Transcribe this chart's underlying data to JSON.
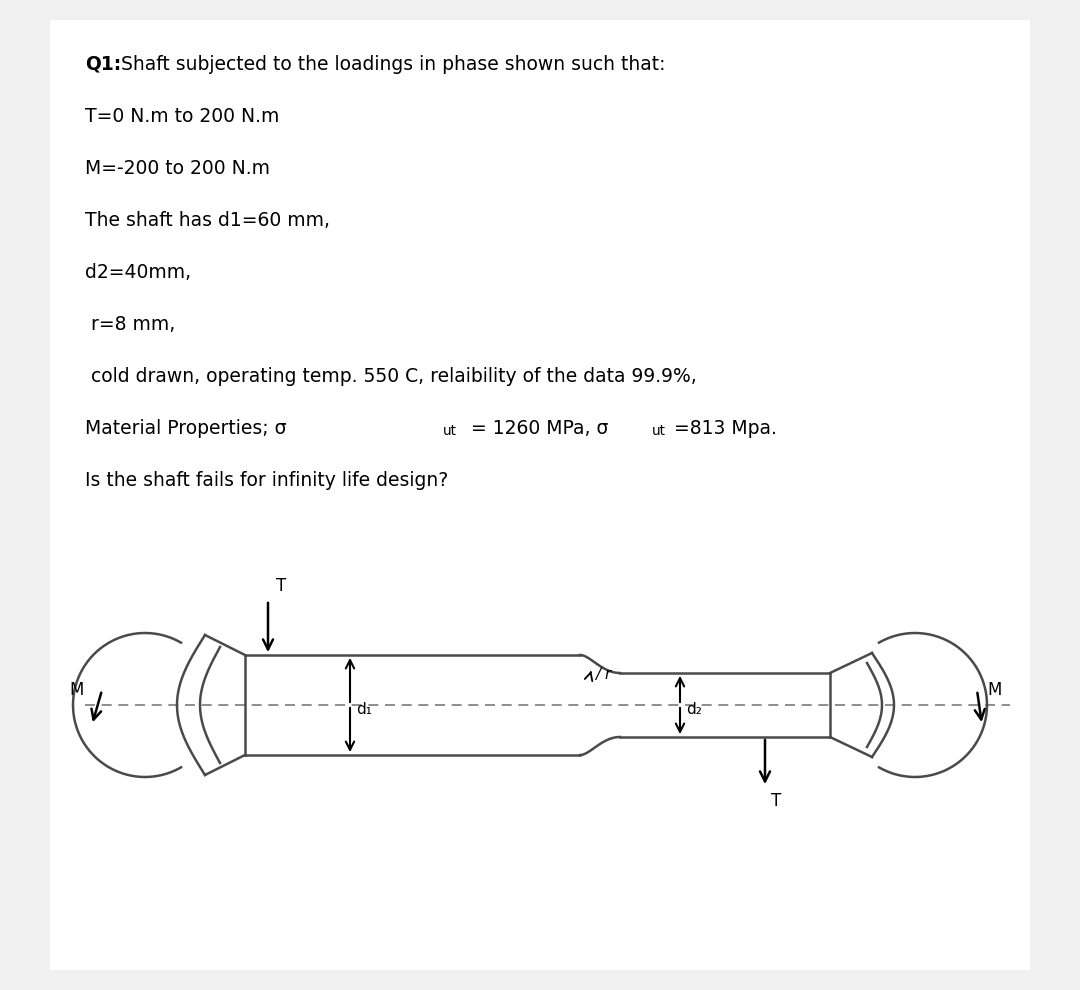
{
  "bg_color": "#f0f0f0",
  "panel_color": "#ffffff",
  "text_color": "#000000",
  "line1_bold": "Q1:",
  "line1_rest": " Shaft subjected to the loadings in phase shown such that:",
  "line2": "T=0 N.m to 200 N.m",
  "line3": "M=-200 to 200 N.m",
  "line4": "The shaft has d1=60 mm,",
  "line5": "d2=40mm,",
  "line6": " r=8 mm,",
  "line7": " cold drawn, operating temp. 550 C, relaibility of the data 99.9%,",
  "line8_pre": "Material Properties; σ",
  "line8_sub1": "ut",
  "line8_mid": " = 1260 MPa, σ",
  "line8_sub2": "ut",
  "line8_post": "=813 Mpa.",
  "line9": "Is the shaft fails for infinity life design?",
  "diagram_line_color": "#4a4a4a",
  "dashed_color": "#7a7a7a",
  "arrow_color": "#000000"
}
